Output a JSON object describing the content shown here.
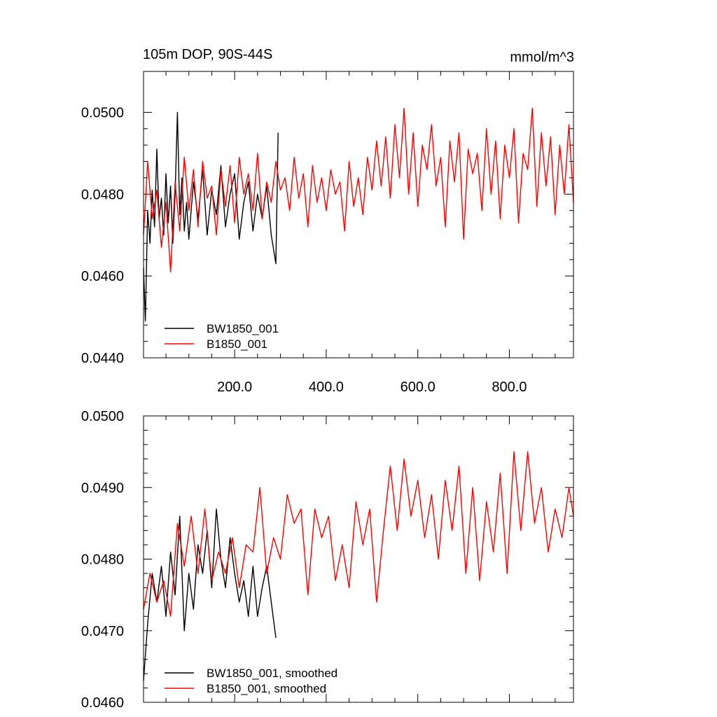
{
  "chart_data": [
    {
      "type": "line",
      "title": "105m DOP, 90S-44S",
      "units": "mmol/m^3",
      "xlim": [
        1,
        940
      ],
      "ylim": [
        0.044,
        0.051
      ],
      "x_ticks": [
        200,
        400,
        600,
        800
      ],
      "x_tick_labels": [
        "200.0",
        "400.0",
        "600.0",
        "800.0"
      ],
      "y_ticks": [
        0.044,
        0.046,
        0.048,
        0.05
      ],
      "y_tick_labels": [
        "0.0440",
        "0.0460",
        "0.0480",
        "0.0500"
      ],
      "legend_position": "bottom-left",
      "series": [
        {
          "name": "BW1850_001",
          "color": "#000000",
          "x": [
            1,
            5,
            10,
            15,
            20,
            25,
            30,
            35,
            40,
            45,
            50,
            55,
            60,
            65,
            70,
            75,
            80,
            85,
            90,
            95,
            100,
            110,
            120,
            130,
            140,
            150,
            160,
            170,
            180,
            190,
            200,
            210,
            220,
            230,
            240,
            250,
            260,
            270,
            280,
            290,
            295
          ],
          "values": [
            0.0462,
            0.0449,
            0.0476,
            0.0468,
            0.0481,
            0.0472,
            0.0491,
            0.0474,
            0.0479,
            0.047,
            0.0485,
            0.0473,
            0.0482,
            0.0468,
            0.048,
            0.05,
            0.0475,
            0.0484,
            0.0471,
            0.0478,
            0.0469,
            0.0483,
            0.0474,
            0.0486,
            0.047,
            0.0481,
            0.0475,
            0.0487,
            0.0472,
            0.048,
            0.0485,
            0.0469,
            0.0478,
            0.0483,
            0.0471,
            0.048,
            0.0474,
            0.0482,
            0.047,
            0.0463,
            0.0495
          ]
        },
        {
          "name": "B1850_001",
          "color": "#ff0000",
          "x": [
            1,
            10,
            20,
            30,
            40,
            50,
            60,
            70,
            80,
            90,
            100,
            110,
            120,
            130,
            140,
            150,
            160,
            170,
            180,
            190,
            200,
            210,
            220,
            230,
            240,
            250,
            260,
            270,
            280,
            290,
            300,
            310,
            320,
            330,
            340,
            350,
            360,
            370,
            380,
            390,
            400,
            410,
            420,
            430,
            440,
            450,
            460,
            470,
            480,
            490,
            500,
            510,
            520,
            530,
            540,
            550,
            560,
            570,
            580,
            590,
            600,
            610,
            620,
            630,
            640,
            650,
            660,
            670,
            680,
            690,
            700,
            710,
            720,
            730,
            740,
            750,
            760,
            770,
            780,
            790,
            800,
            810,
            820,
            830,
            840,
            850,
            860,
            870,
            880,
            890,
            900,
            910,
            920,
            930,
            940
          ],
          "values": [
            0.047,
            0.0488,
            0.0474,
            0.0481,
            0.0467,
            0.0478,
            0.0461,
            0.0483,
            0.0471,
            0.0489,
            0.0476,
            0.0486,
            0.0472,
            0.0488,
            0.0479,
            0.0482,
            0.047,
            0.0486,
            0.0477,
            0.0487,
            0.0473,
            0.0489,
            0.048,
            0.0485,
            0.0476,
            0.049,
            0.0474,
            0.0483,
            0.0478,
            0.0488,
            0.0481,
            0.0484,
            0.0476,
            0.0489,
            0.0479,
            0.0485,
            0.0472,
            0.0487,
            0.0478,
            0.0484,
            0.0476,
            0.0486,
            0.048,
            0.0483,
            0.0471,
            0.0488,
            0.0477,
            0.0484,
            0.0475,
            0.0489,
            0.0481,
            0.0493,
            0.0482,
            0.0494,
            0.0479,
            0.0497,
            0.0484,
            0.0501,
            0.048,
            0.0495,
            0.0477,
            0.0492,
            0.0486,
            0.0497,
            0.0482,
            0.0489,
            0.0472,
            0.0493,
            0.0483,
            0.0495,
            0.0469,
            0.0491,
            0.0485,
            0.049,
            0.0476,
            0.0496,
            0.048,
            0.0493,
            0.0474,
            0.0492,
            0.0484,
            0.0496,
            0.0473,
            0.049,
            0.0486,
            0.0501,
            0.0477,
            0.0495,
            0.0482,
            0.0494,
            0.0475,
            0.0492,
            0.048,
            0.0497,
            0.0478
          ]
        }
      ]
    },
    {
      "type": "line",
      "title": "",
      "units": "",
      "xlim": [
        1,
        940
      ],
      "ylim": [
        0.046,
        0.05
      ],
      "y_ticks": [
        0.046,
        0.047,
        0.048,
        0.049,
        0.05
      ],
      "y_tick_labels": [
        "0.0460",
        "0.0470",
        "0.0480",
        "0.0490",
        "0.0500"
      ],
      "legend_position": "bottom-left",
      "series": [
        {
          "name": "BW1850_001, smoothed",
          "color": "#000000",
          "x": [
            1,
            10,
            20,
            30,
            40,
            50,
            60,
            70,
            80,
            90,
            100,
            110,
            120,
            130,
            140,
            150,
            160,
            170,
            180,
            190,
            200,
            210,
            220,
            230,
            240,
            250,
            260,
            270,
            280,
            290
          ],
          "values": [
            0.0463,
            0.0471,
            0.0478,
            0.0474,
            0.0479,
            0.0472,
            0.0481,
            0.0475,
            0.0486,
            0.047,
            0.0478,
            0.0473,
            0.0482,
            0.0478,
            0.0484,
            0.0476,
            0.0487,
            0.048,
            0.0476,
            0.0483,
            0.0478,
            0.0474,
            0.0477,
            0.0472,
            0.0479,
            0.0472,
            0.0476,
            0.0479,
            0.0474,
            0.0469
          ]
        },
        {
          "name": "B1850_001, smoothed",
          "color": "#ff0000",
          "x": [
            1,
            15,
            30,
            45,
            60,
            75,
            90,
            105,
            120,
            135,
            150,
            165,
            180,
            195,
            210,
            225,
            240,
            255,
            270,
            285,
            300,
            315,
            330,
            345,
            360,
            375,
            390,
            405,
            420,
            435,
            450,
            465,
            480,
            495,
            510,
            525,
            540,
            555,
            570,
            585,
            600,
            615,
            630,
            645,
            660,
            675,
            690,
            705,
            720,
            735,
            750,
            765,
            780,
            795,
            810,
            825,
            840,
            855,
            870,
            885,
            900,
            915,
            930,
            940
          ],
          "values": [
            0.0473,
            0.0478,
            0.0474,
            0.0477,
            0.0472,
            0.0485,
            0.0479,
            0.0486,
            0.0478,
            0.0487,
            0.0477,
            0.0481,
            0.0478,
            0.0483,
            0.0476,
            0.0482,
            0.0481,
            0.049,
            0.0478,
            0.0483,
            0.048,
            0.0489,
            0.0485,
            0.0487,
            0.0475,
            0.0487,
            0.0483,
            0.0486,
            0.0477,
            0.0482,
            0.0476,
            0.0488,
            0.0482,
            0.0487,
            0.0474,
            0.0484,
            0.0493,
            0.0484,
            0.0494,
            0.0486,
            0.0491,
            0.0483,
            0.0489,
            0.048,
            0.0491,
            0.0484,
            0.0493,
            0.0478,
            0.049,
            0.0477,
            0.0488,
            0.0481,
            0.0492,
            0.0478,
            0.0495,
            0.0484,
            0.0495,
            0.0485,
            0.049,
            0.0481,
            0.0487,
            0.0483,
            0.049,
            0.0486
          ]
        }
      ]
    }
  ]
}
